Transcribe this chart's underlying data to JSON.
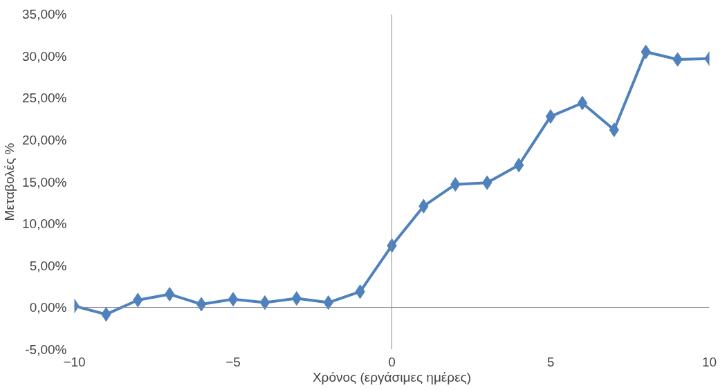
{
  "chart_data": {
    "type": "line",
    "xlabel": "Χρόνος (εργάσιμες ημέρες)",
    "ylabel": "Μεταβολές %",
    "x": [
      -10,
      -9,
      -8,
      -7,
      -6,
      -5,
      -4,
      -3,
      -2,
      -1,
      0,
      1,
      2,
      3,
      4,
      5,
      6,
      7,
      8,
      9,
      10
    ],
    "series": [
      {
        "color": "#4f81bd",
        "values": [
          0.2,
          -0.8,
          0.9,
          1.6,
          0.4,
          1.0,
          0.6,
          1.1,
          0.6,
          1.9,
          7.4,
          12.1,
          14.7,
          14.9,
          17.0,
          22.8,
          24.4,
          21.2,
          30.5,
          29.6,
          29.7
        ]
      }
    ],
    "xlim": [
      -10,
      10
    ],
    "xticks": [
      -10,
      -5,
      0,
      5,
      10
    ],
    "ylim": [
      -5,
      35
    ],
    "yticks": [
      {
        "value": -5,
        "label": "-5,00%"
      },
      {
        "value": 0,
        "label": "0,00%"
      },
      {
        "value": 5,
        "label": "5,00%"
      },
      {
        "value": 10,
        "label": "10,00%"
      },
      {
        "value": 15,
        "label": "15,00%"
      },
      {
        "value": 20,
        "label": "20,00%"
      },
      {
        "value": 25,
        "label": "25,00%"
      },
      {
        "value": 30,
        "label": "30,00%"
      },
      {
        "value": 35,
        "label": "35,00%"
      }
    ],
    "marker": "diamond",
    "line_style": "solid"
  }
}
